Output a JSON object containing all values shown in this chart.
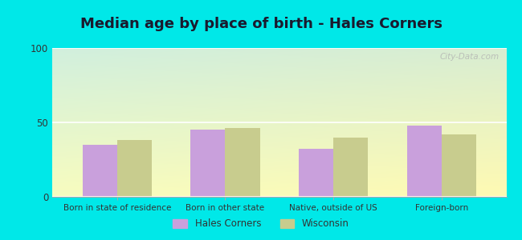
{
  "title": "Median age by place of birth - Hales Corners",
  "categories": [
    "Born in state of residence",
    "Born in other state",
    "Native, outside of US",
    "Foreign-born"
  ],
  "hales_corners": [
    35,
    45,
    32,
    48
  ],
  "wisconsin": [
    38,
    46,
    40,
    42
  ],
  "bar_color_hales": "#c9a0dc",
  "bar_color_wi": "#c8cc8e",
  "ylim": [
    0,
    100
  ],
  "yticks": [
    0,
    50,
    100
  ],
  "bg_color": "#00e8e8",
  "legend_label_hales": "Hales Corners",
  "legend_label_wi": "Wisconsin",
  "title_fontsize": 13,
  "bar_width": 0.32,
  "watermark": "City-Data.com",
  "plot_bg_colors": [
    "#d8ede0",
    "#f0faf0",
    "#f5fff5",
    "#eaf5ea"
  ]
}
